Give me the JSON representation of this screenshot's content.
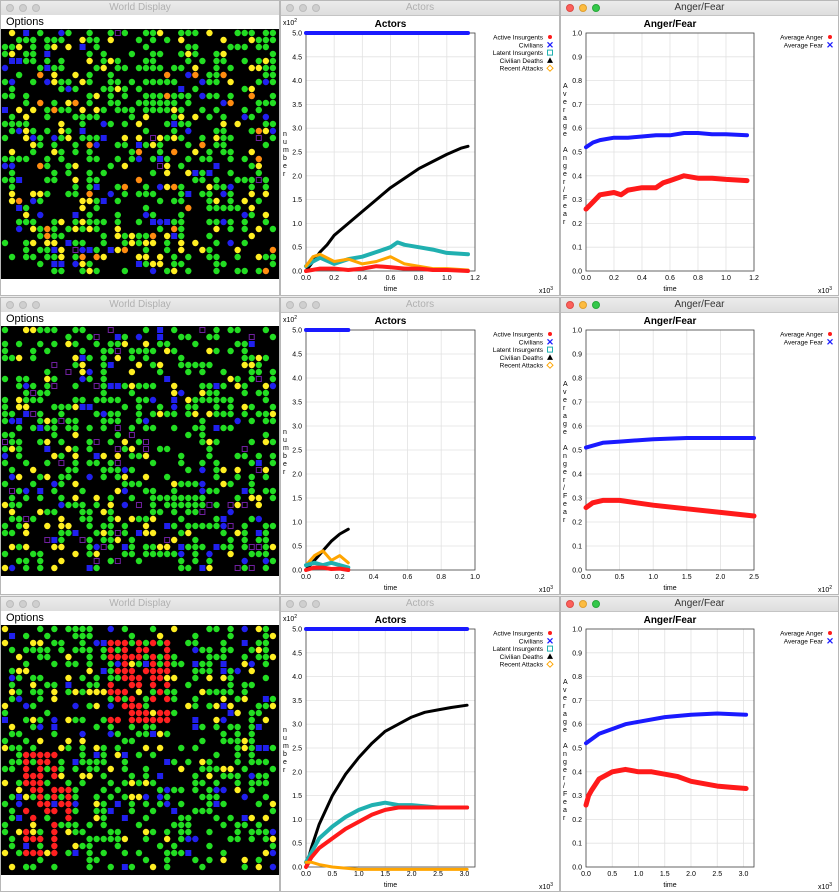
{
  "rows": [
    {
      "world": {
        "title": "World Display",
        "menu": "Options",
        "mode": "mixed"
      },
      "actors": {
        "title": "Actors",
        "chart_data": {
          "type": "line",
          "title": "Actors",
          "xlabel": "time",
          "ylabel": "number",
          "x_exponent": "x10",
          "x_exp": "3",
          "y_exponent": "x10",
          "y_exp": "2",
          "xlim": [
            0,
            1.2
          ],
          "ylim": [
            0,
            5.0
          ],
          "xticks": [
            "0.0",
            "0.2",
            "0.4",
            "0.6",
            "0.8",
            "1.0",
            "1.2"
          ],
          "yticks": [
            "0.0",
            "0.5",
            "1.0",
            "1.5",
            "2.0",
            "2.5",
            "3.0",
            "3.5",
            "4.0",
            "4.5",
            "5.0"
          ],
          "legend": [
            "Active Insurgents",
            "Civilians",
            "Latent Insurgents",
            "Civilian Deaths",
            "Recent Attacks"
          ],
          "series": [
            {
              "name": "Civilians",
              "color": "#1a1aff",
              "width": 4,
              "x": [
                0,
                0.3,
                0.6,
                0.9,
                1.15
              ],
              "y": [
                5.0,
                5.0,
                5.0,
                5.0,
                5.0
              ]
            },
            {
              "name": "Civilian Deaths",
              "color": "#000000",
              "width": 3,
              "x": [
                0,
                0.05,
                0.1,
                0.15,
                0.2,
                0.3,
                0.4,
                0.5,
                0.6,
                0.7,
                0.8,
                0.9,
                1.0,
                1.1,
                1.15
              ],
              "y": [
                0,
                0.2,
                0.4,
                0.55,
                0.75,
                1.0,
                1.25,
                1.5,
                1.75,
                1.95,
                2.15,
                2.3,
                2.45,
                2.58,
                2.62
              ]
            },
            {
              "name": "Latent Insurgents",
              "color": "#20b0b0",
              "width": 4,
              "x": [
                0,
                0.05,
                0.1,
                0.2,
                0.3,
                0.4,
                0.5,
                0.6,
                0.65,
                0.7,
                0.8,
                0.9,
                1.0,
                1.15
              ],
              "y": [
                0.1,
                0.2,
                0.28,
                0.15,
                0.25,
                0.3,
                0.4,
                0.5,
                0.6,
                0.55,
                0.5,
                0.45,
                0.38,
                0.35
              ]
            },
            {
              "name": "Recent Attacks",
              "color": "#ffa500",
              "width": 3,
              "x": [
                0,
                0.05,
                0.1,
                0.2,
                0.3,
                0.4,
                0.5,
                0.6,
                0.7,
                0.8,
                0.9,
                1.0,
                1.15
              ],
              "y": [
                0.1,
                0.3,
                0.35,
                0.2,
                0.25,
                0.15,
                0.2,
                0.3,
                0.15,
                0.1,
                0.05,
                0.05,
                0.02
              ]
            },
            {
              "name": "Active Insurgents",
              "color": "#ff1a1a",
              "width": 4,
              "x": [
                0,
                0.1,
                0.2,
                0.3,
                0.4,
                0.5,
                0.6,
                0.7,
                0.8,
                0.9,
                1.0,
                1.15
              ],
              "y": [
                0,
                0.05,
                0.05,
                0.02,
                0.05,
                0.1,
                0.08,
                0.05,
                0.05,
                0.02,
                0.02,
                0.0
              ]
            }
          ]
        }
      },
      "anger": {
        "title": "Anger/Fear",
        "chart_data": {
          "type": "line",
          "title": "Anger/Fear",
          "xlabel": "time",
          "ylabel": "Average Anger/Fear",
          "x_exponent": "x10",
          "x_exp": "3",
          "xlim": [
            0,
            1.2
          ],
          "ylim": [
            0,
            1.0
          ],
          "xticks": [
            "0.0",
            "0.2",
            "0.4",
            "0.6",
            "0.8",
            "1.0",
            "1.2"
          ],
          "yticks": [
            "0.0",
            "0.1",
            "0.2",
            "0.3",
            "0.4",
            "0.5",
            "0.6",
            "0.7",
            "0.8",
            "0.9",
            "1.0"
          ],
          "legend": [
            "Average Anger",
            "Average Fear"
          ],
          "series": [
            {
              "name": "Average Fear",
              "color": "#1a1aff",
              "width": 4,
              "x": [
                0,
                0.05,
                0.1,
                0.2,
                0.3,
                0.4,
                0.5,
                0.6,
                0.7,
                0.8,
                0.9,
                1.0,
                1.15
              ],
              "y": [
                0.52,
                0.54,
                0.55,
                0.56,
                0.56,
                0.565,
                0.57,
                0.57,
                0.58,
                0.58,
                0.575,
                0.575,
                0.57
              ]
            },
            {
              "name": "Average Anger",
              "color": "#ff1a1a",
              "width": 5,
              "x": [
                0,
                0.05,
                0.1,
                0.2,
                0.25,
                0.3,
                0.4,
                0.5,
                0.55,
                0.6,
                0.7,
                0.8,
                0.9,
                1.0,
                1.15
              ],
              "y": [
                0.26,
                0.29,
                0.32,
                0.33,
                0.32,
                0.34,
                0.35,
                0.35,
                0.37,
                0.38,
                0.4,
                0.39,
                0.39,
                0.385,
                0.38
              ]
            }
          ]
        }
      }
    },
    {
      "world": {
        "title": "World Display",
        "menu": "Options",
        "mode": "calm"
      },
      "actors": {
        "title": "Actors",
        "chart_data": {
          "type": "line",
          "title": "Actors",
          "xlabel": "time",
          "ylabel": "number",
          "x_exponent": "x10",
          "x_exp": "3",
          "y_exponent": "x10",
          "y_exp": "2",
          "xlim": [
            0,
            1.0
          ],
          "ylim": [
            0,
            5.0
          ],
          "xticks": [
            "0.0",
            "0.2",
            "0.4",
            "0.6",
            "0.8",
            "1.0"
          ],
          "yticks": [
            "0.0",
            "0.5",
            "1.0",
            "1.5",
            "2.0",
            "2.5",
            "3.0",
            "3.5",
            "4.0",
            "4.5",
            "5.0"
          ],
          "legend": [
            "Active Insurgents",
            "Civilians",
            "Latent Insurgents",
            "Civilian Deaths",
            "Recent Attacks"
          ],
          "series": [
            {
              "name": "Civilians",
              "color": "#1a1aff",
              "width": 4,
              "x": [
                0,
                0.1,
                0.25
              ],
              "y": [
                5.0,
                5.0,
                5.0
              ]
            },
            {
              "name": "Civilian Deaths",
              "color": "#000000",
              "width": 3,
              "x": [
                0,
                0.05,
                0.1,
                0.15,
                0.2,
                0.25
              ],
              "y": [
                0,
                0.2,
                0.4,
                0.6,
                0.75,
                0.85
              ]
            },
            {
              "name": "Recent Attacks",
              "color": "#ffa500",
              "width": 3,
              "x": [
                0,
                0.05,
                0.1,
                0.15,
                0.2,
                0.25
              ],
              "y": [
                0.1,
                0.3,
                0.4,
                0.2,
                0.3,
                0.15
              ]
            },
            {
              "name": "Latent Insurgents",
              "color": "#20b0b0",
              "width": 4,
              "x": [
                0,
                0.05,
                0.1,
                0.15,
                0.2,
                0.25
              ],
              "y": [
                0.1,
                0.15,
                0.1,
                0.15,
                0.1,
                0.05
              ]
            },
            {
              "name": "Active Insurgents",
              "color": "#ff1a1a",
              "width": 4,
              "x": [
                0,
                0.05,
                0.1,
                0.15,
                0.2,
                0.25
              ],
              "y": [
                0,
                0.05,
                0.05,
                0.02,
                0.03,
                0.0
              ]
            }
          ]
        }
      },
      "anger": {
        "title": "Anger/Fear",
        "chart_data": {
          "type": "line",
          "title": "Anger/Fear",
          "xlabel": "time",
          "ylabel": "Average Anger/Fear",
          "x_exponent": "x10",
          "x_exp": "2",
          "xlim": [
            0,
            2.5
          ],
          "ylim": [
            0,
            1.0
          ],
          "xticks": [
            "0.0",
            "0.5",
            "1.0",
            "1.5",
            "2.0",
            "2.5"
          ],
          "yticks": [
            "0.0",
            "0.1",
            "0.2",
            "0.3",
            "0.4",
            "0.5",
            "0.6",
            "0.7",
            "0.8",
            "0.9",
            "1.0"
          ],
          "legend": [
            "Average Anger",
            "Average Fear"
          ],
          "series": [
            {
              "name": "Average Fear",
              "color": "#1a1aff",
              "width": 4,
              "x": [
                0,
                0.25,
                0.5,
                1.0,
                1.5,
                2.0,
                2.5
              ],
              "y": [
                0.51,
                0.53,
                0.535,
                0.545,
                0.55,
                0.55,
                0.55
              ]
            },
            {
              "name": "Average Anger",
              "color": "#ff1a1a",
              "width": 5,
              "x": [
                0,
                0.1,
                0.25,
                0.5,
                0.75,
                1.0,
                1.5,
                2.0,
                2.5
              ],
              "y": [
                0.26,
                0.28,
                0.29,
                0.29,
                0.28,
                0.27,
                0.255,
                0.24,
                0.225
              ]
            }
          ]
        }
      }
    },
    {
      "world": {
        "title": "World Display",
        "menu": "Options",
        "mode": "insurgent"
      },
      "actors": {
        "title": "Actors",
        "chart_data": {
          "type": "line",
          "title": "Actors",
          "xlabel": "time",
          "ylabel": "number",
          "x_exponent": "x10",
          "x_exp": "3",
          "y_exponent": "x10",
          "y_exp": "2",
          "xlim": [
            0,
            3.2
          ],
          "ylim": [
            0,
            5.0
          ],
          "xticks": [
            "0.0",
            "0.5",
            "1.0",
            "1.5",
            "2.0",
            "2.5",
            "3.0"
          ],
          "yticks": [
            "0.0",
            "0.5",
            "1.0",
            "1.5",
            "2.0",
            "2.5",
            "3.0",
            "3.5",
            "4.0",
            "4.5",
            "5.0"
          ],
          "legend": [
            "Active Insurgents",
            "Civilians",
            "Latent Insurgents",
            "Civilian Deaths",
            "Recent Attacks"
          ],
          "series": [
            {
              "name": "Civilians",
              "color": "#1a1aff",
              "width": 4,
              "x": [
                0,
                1.0,
                2.0,
                3.05
              ],
              "y": [
                5.0,
                5.0,
                5.0,
                5.0
              ]
            },
            {
              "name": "Civilian Deaths",
              "color": "#000000",
              "width": 3,
              "x": [
                0,
                0.1,
                0.25,
                0.5,
                0.75,
                1.0,
                1.25,
                1.5,
                1.75,
                2.0,
                2.25,
                2.5,
                2.75,
                3.05
              ],
              "y": [
                0,
                0.4,
                0.9,
                1.5,
                1.95,
                2.3,
                2.6,
                2.85,
                3.0,
                3.15,
                3.25,
                3.3,
                3.35,
                3.4
              ]
            },
            {
              "name": "Latent Insurgents",
              "color": "#20b0b0",
              "width": 4,
              "x": [
                0,
                0.1,
                0.25,
                0.5,
                0.75,
                1.0,
                1.25,
                1.5,
                1.75,
                2.0,
                2.5,
                3.05
              ],
              "y": [
                0.1,
                0.3,
                0.6,
                0.85,
                1.05,
                1.2,
                1.3,
                1.35,
                1.3,
                1.3,
                1.25,
                1.25
              ]
            },
            {
              "name": "Active Insurgents",
              "color": "#ff1a1a",
              "width": 4,
              "x": [
                0,
                0.1,
                0.25,
                0.5,
                0.75,
                1.0,
                1.25,
                1.5,
                1.75,
                2.0,
                2.5,
                3.05
              ],
              "y": [
                0,
                0.2,
                0.4,
                0.6,
                0.8,
                0.95,
                1.1,
                1.2,
                1.25,
                1.25,
                1.25,
                1.25
              ]
            },
            {
              "name": "Recent Attacks",
              "color": "#ffa500",
              "width": 3,
              "x": [
                0,
                0.1,
                0.25,
                0.5,
                1.0,
                1.5,
                2.0,
                2.5,
                3.05
              ],
              "y": [
                0.1,
                0.1,
                0.05,
                0.0,
                -0.05,
                -0.05,
                -0.05,
                -0.05,
                -0.05
              ]
            }
          ]
        }
      },
      "anger": {
        "title": "Anger/Fear",
        "chart_data": {
          "type": "line",
          "title": "Anger/Fear",
          "xlabel": "time",
          "ylabel": "Average Anger/Fear",
          "x_exponent": "x10",
          "x_exp": "3",
          "xlim": [
            0,
            3.2
          ],
          "ylim": [
            0,
            1.0
          ],
          "xticks": [
            "0.0",
            "0.5",
            "1.0",
            "1.5",
            "2.0",
            "2.5",
            "3.0"
          ],
          "yticks": [
            "0.0",
            "0.1",
            "0.2",
            "0.3",
            "0.4",
            "0.5",
            "0.6",
            "0.7",
            "0.8",
            "0.9",
            "1.0"
          ],
          "legend": [
            "Average Anger",
            "Average Fear"
          ],
          "series": [
            {
              "name": "Average Fear",
              "color": "#1a1aff",
              "width": 4,
              "x": [
                0,
                0.25,
                0.5,
                0.75,
                1.0,
                1.5,
                2.0,
                2.5,
                3.05
              ],
              "y": [
                0.52,
                0.56,
                0.58,
                0.6,
                0.61,
                0.63,
                0.64,
                0.645,
                0.64
              ]
            },
            {
              "name": "Average Anger",
              "color": "#ff1a1a",
              "width": 5,
              "x": [
                0,
                0.05,
                0.1,
                0.25,
                0.5,
                0.75,
                1.0,
                1.25,
                1.5,
                1.75,
                2.0,
                2.25,
                2.5,
                2.75,
                3.05
              ],
              "y": [
                0.26,
                0.3,
                0.32,
                0.37,
                0.4,
                0.41,
                0.4,
                0.4,
                0.39,
                0.38,
                0.36,
                0.35,
                0.34,
                0.335,
                0.33
              ]
            }
          ]
        }
      }
    }
  ]
}
